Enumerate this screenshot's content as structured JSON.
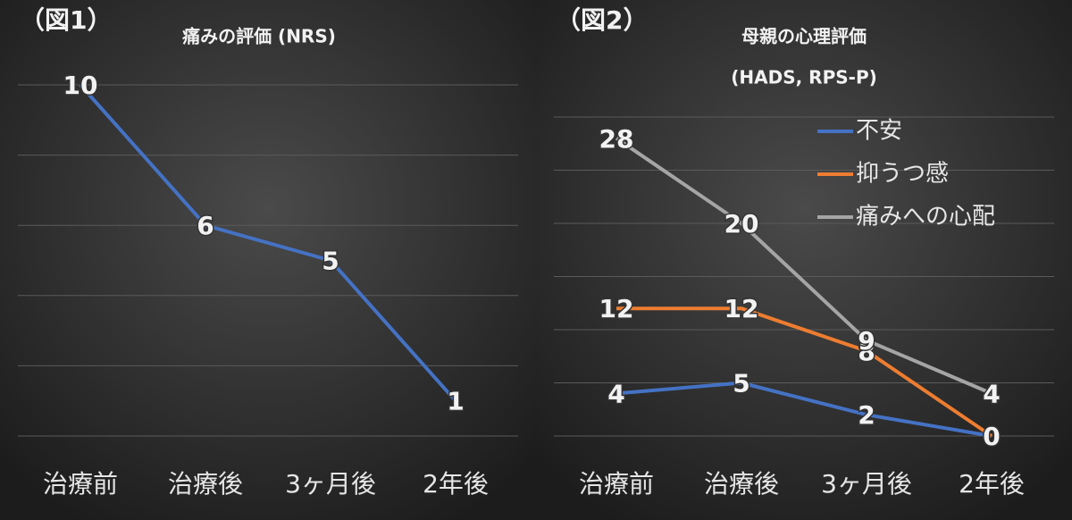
{
  "chart_data": [
    {
      "type": "line",
      "label": "（図1）",
      "title": "痛みの評価 (NRS)",
      "categories": [
        "治療前",
        "治療後",
        "3ヶ月後",
        "2年後"
      ],
      "series": [
        {
          "color": "#4472c4",
          "values": [
            10,
            6,
            5,
            1
          ]
        }
      ],
      "ylim": [
        0,
        10
      ],
      "yticks": [
        0,
        2,
        4,
        6,
        8,
        10
      ],
      "grid": true
    },
    {
      "type": "line",
      "label": "（図2）",
      "title": "母親の心理評価",
      "subtitle": "(HADS, RPS-P)",
      "categories": [
        "治療前",
        "治療後",
        "3ヶ月後",
        "2年後"
      ],
      "series": [
        {
          "name": "不安",
          "color": "#4472c4",
          "values": [
            4,
            5,
            2,
            0
          ]
        },
        {
          "name": "抑うつ感",
          "color": "#ed7d31",
          "values": [
            12,
            12,
            8,
            0
          ]
        },
        {
          "name": "痛みへの心配",
          "color": "#a5a5a5",
          "values": [
            28,
            20,
            9,
            4
          ]
        }
      ],
      "ylim": [
        0,
        30
      ],
      "yticks": [
        0,
        5,
        10,
        15,
        20,
        25,
        30
      ],
      "grid": true,
      "legend": "upper right"
    }
  ]
}
